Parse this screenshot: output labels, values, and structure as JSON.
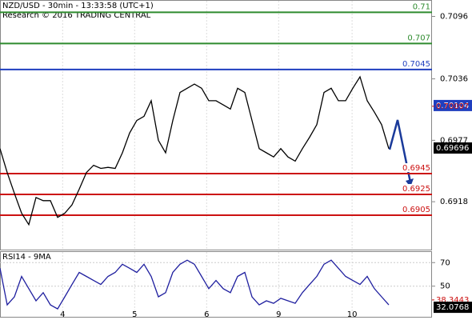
{
  "chart_data": [
    {
      "type": "line",
      "title": "NZD/USD - 30min - 13:33:58 (UTC+1)",
      "subtitle": "Research © 2016 TRADING CENTRAL",
      "series": [
        {
          "color": "#000000",
          "values": [
            0.6969,
            0.6946,
            0.6926,
            0.6907,
            0.6896,
            0.6922,
            0.6919,
            0.6919,
            0.6903,
            0.6907,
            0.6915,
            0.693,
            0.6946,
            0.6953,
            0.695,
            0.6951,
            0.695,
            0.6965,
            0.6984,
            0.6996,
            0.7,
            0.7015,
            0.6977,
            0.6965,
            0.6996,
            0.7023,
            0.7027,
            0.7031,
            0.7027,
            0.7015,
            0.7015,
            0.7011,
            0.7007,
            0.7027,
            0.7023,
            0.6996,
            0.6969,
            0.6965,
            0.6961,
            0.6969,
            0.6961,
            0.6957,
            0.6969,
            0.698,
            0.6992,
            0.7023,
            0.7027,
            0.7015,
            0.7015,
            0.7027,
            0.7038,
            0.7015,
            0.7004,
            0.6992,
            0.6969
          ]
        }
      ],
      "xlim": [
        0,
        60
      ],
      "xticks": [
        {
          "value": 8.7,
          "label": "4"
        },
        {
          "value": 18.7,
          "label": "5"
        },
        {
          "value": 28.7,
          "label": "6"
        },
        {
          "value": 38.7,
          "label": "9"
        },
        {
          "value": 48.9,
          "label": "10"
        }
      ],
      "ylim": [
        0.6872,
        0.7111
      ],
      "yticks": [
        0.7096,
        0.7036,
        0.6977,
        0.6918
      ],
      "levels": [
        {
          "value": 0.71,
          "color": "#2e8b2e"
        },
        {
          "value": 0.707,
          "color": "#2e8b2e"
        },
        {
          "value": 0.7045,
          "color": "#1f3fbf"
        },
        {
          "value": 0.6945,
          "color": "#cc1111"
        },
        {
          "value": 0.6925,
          "color": "#cc1111"
        },
        {
          "value": 0.6905,
          "color": "#cc1111"
        }
      ],
      "price_markers": [
        {
          "value": 0.70104,
          "style": "box",
          "color": "#1f3fbf"
        },
        {
          "value": 0.70097,
          "style": "text",
          "color": "#cc1111"
        },
        {
          "value": 0.69696,
          "style": "box",
          "color": "#000000"
        }
      ]
    },
    {
      "type": "line",
      "title": "RSI14 - 9MA",
      "series": [
        {
          "color": "#1f1f9f",
          "values": [
            65.2,
            34.1,
            41,
            58.3,
            47.9,
            37.6,
            44.5,
            34.1,
            30.7,
            41,
            51.4,
            61.7,
            58.3,
            54.8,
            51.4,
            58.3,
            61.7,
            68.6,
            65.2,
            61.7,
            68.6,
            58.3,
            41,
            44.5,
            61.7,
            68.6,
            72.1,
            68.6,
            58.3,
            47.9,
            54.8,
            47.9,
            44.5,
            58.3,
            61.7,
            41,
            34.1,
            37.6,
            35.5,
            39.7,
            37.6,
            35.5,
            44.5,
            51.4,
            58.3,
            68.6,
            72.1,
            65.2,
            58.3,
            54.8,
            51.4,
            58.3,
            47.9,
            41,
            34.1
          ]
        }
      ],
      "xlim": [
        0,
        60
      ],
      "ylim": [
        24,
        79
      ],
      "yticks": [
        70,
        50
      ],
      "price_markers": [
        {
          "value": 38.3443,
          "style": "text",
          "color": "#cc1111"
        },
        {
          "value": 32.0768,
          "style": "box",
          "color": "#000000"
        }
      ]
    }
  ]
}
